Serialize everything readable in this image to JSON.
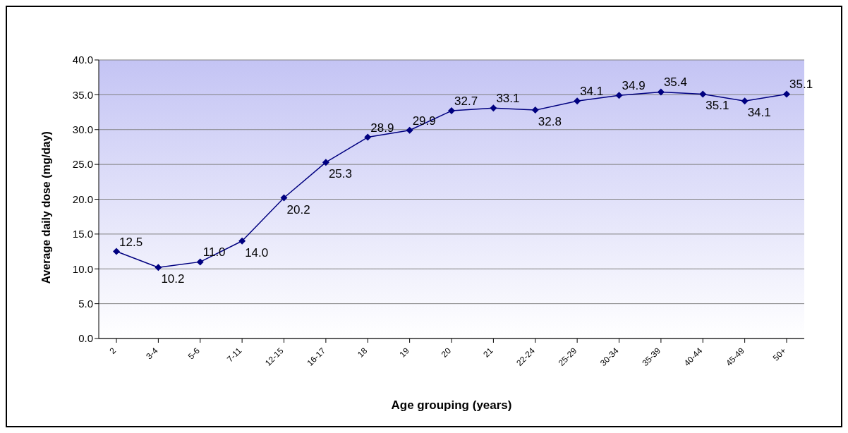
{
  "chart_data": {
    "type": "line",
    "xlabel": "Age grouping (years)",
    "ylabel": "Average daily dose (mg/day)",
    "categories": [
      "2",
      "3-4",
      "5-6",
      "7-11",
      "12-15",
      "16-17",
      "18",
      "19",
      "20",
      "21",
      "22-24",
      "25-29",
      "30-34",
      "35-39",
      "40-44",
      "45-49",
      "50+"
    ],
    "series": [
      {
        "color": "#000080",
        "values": [
          12.5,
          10.2,
          11.0,
          14.0,
          20.2,
          25.3,
          28.9,
          29.9,
          32.7,
          33.1,
          32.8,
          34.1,
          34.9,
          35.4,
          35.1,
          34.1,
          35.1
        ],
        "value_labels": [
          "12.5",
          "10.2",
          "11.0",
          "14.0",
          "20.2",
          "25.3",
          "28.9",
          "29.9",
          "32.7",
          "33.1",
          "32.8",
          "34.1",
          "34.9",
          "35.4",
          "35.1",
          "34.1",
          "35.1"
        ]
      }
    ],
    "ylim": [
      0,
      40
    ],
    "yticks": [
      {
        "value": 0,
        "label": "0.0"
      },
      {
        "value": 5,
        "label": "5.0"
      },
      {
        "value": 10,
        "label": "10.0"
      },
      {
        "value": 15,
        "label": "15.0"
      },
      {
        "value": 20,
        "label": "20.0"
      },
      {
        "value": 25,
        "label": "25.0"
      },
      {
        "value": 30,
        "label": "30.0"
      },
      {
        "value": 35,
        "label": "35.0"
      },
      {
        "value": 40,
        "label": "40.0"
      }
    ],
    "grid": "y",
    "marker": "diamond",
    "line_style": "solid",
    "legend": false
  }
}
